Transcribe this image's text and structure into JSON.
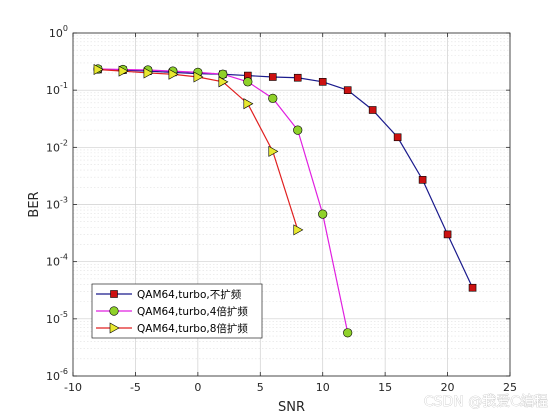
{
  "chart_data": {
    "type": "line",
    "xlabel": "SNR",
    "ylabel": "BER",
    "xlim": [
      -10,
      25
    ],
    "ylim": [
      1e-06,
      1
    ],
    "yscale": "log",
    "grid": true,
    "legend_position": "bottom-left",
    "x_ticks": [
      "-10",
      "-5",
      "0",
      "5",
      "10",
      "15",
      "20",
      "25"
    ],
    "y_ticks": [
      {
        "base": "10",
        "exp": "0"
      },
      {
        "base": "10",
        "exp": "-1"
      },
      {
        "base": "10",
        "exp": "-2"
      },
      {
        "base": "10",
        "exp": "-3"
      },
      {
        "base": "10",
        "exp": "-4"
      },
      {
        "base": "10",
        "exp": "-5"
      },
      {
        "base": "10",
        "exp": "-6"
      }
    ],
    "series": [
      {
        "name": "QAM64,turbo,不扩频",
        "color": "#1a1a8c",
        "marker": "square",
        "marker_color": "#cc1111",
        "x": [
          -8,
          -6,
          -4,
          -2,
          0,
          2,
          4,
          6,
          8,
          10,
          12,
          14,
          16,
          18,
          20,
          22
        ],
        "y": [
          0.23,
          0.225,
          0.215,
          0.205,
          0.195,
          0.19,
          0.18,
          0.17,
          0.165,
          0.14,
          0.1,
          0.045,
          0.015,
          0.0027,
          0.0003,
          3.5e-05
        ]
      },
      {
        "name": "QAM64,turbo,4倍扩频",
        "color": "#e020e0",
        "marker": "circle",
        "marker_color": "#8fd12a",
        "x": [
          -8,
          -6,
          -4,
          -2,
          0,
          2,
          4,
          6,
          8,
          10,
          12
        ],
        "y": [
          0.235,
          0.23,
          0.225,
          0.215,
          0.205,
          0.19,
          0.14,
          0.072,
          0.02,
          0.00068,
          5.7e-06
        ]
      },
      {
        "name": "QAM64,turbo,8倍扩频",
        "color": "#e02020",
        "marker": "triangle-right",
        "marker_color": "#e8e830",
        "x": [
          -8,
          -6,
          -4,
          -2,
          0,
          2,
          4,
          6,
          8
        ],
        "y": [
          0.23,
          0.215,
          0.2,
          0.19,
          0.17,
          0.14,
          0.058,
          0.0085,
          0.00036
        ]
      }
    ]
  },
  "watermark": "CSDN @我爱C编程"
}
